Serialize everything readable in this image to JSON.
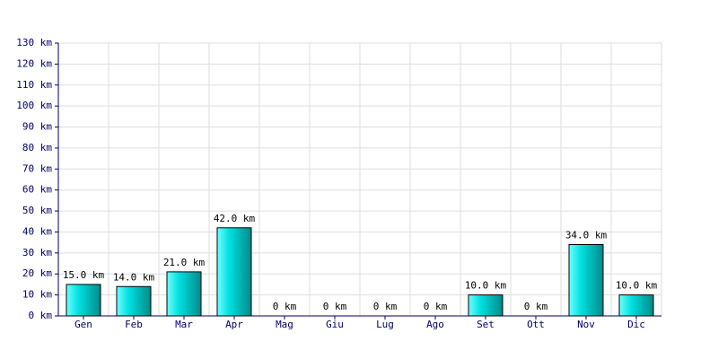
{
  "chart_data": {
    "type": "bar",
    "categories": [
      "Gen",
      "Feb",
      "Mar",
      "Apr",
      "Mag",
      "Giu",
      "Lug",
      "Ago",
      "Set",
      "Ott",
      "Nov",
      "Dic"
    ],
    "values": [
      15,
      14,
      21,
      42,
      0,
      0,
      0,
      0,
      10,
      0,
      34,
      10
    ],
    "value_labels": [
      "15.0 km",
      "14.0 km",
      "21.0 km",
      "42.0 km",
      "0 km",
      "0 km",
      "0 km",
      "0 km",
      "10.0 km",
      "0 km",
      "34.0 km",
      "10.0 km"
    ],
    "color": "#00c8c8",
    "ylim": [
      0,
      130
    ],
    "yticks": [
      {
        "value": 0,
        "label": "0 km"
      },
      {
        "value": 10,
        "label": "10 km"
      },
      {
        "value": 20,
        "label": "20 km"
      },
      {
        "value": 30,
        "label": "30 km"
      },
      {
        "value": 40,
        "label": "40 km"
      },
      {
        "value": 50,
        "label": "50 km"
      },
      {
        "value": 60,
        "label": "60 km"
      },
      {
        "value": 70,
        "label": "70 km"
      },
      {
        "value": 80,
        "label": "80 km"
      },
      {
        "value": 90,
        "label": "90 km"
      },
      {
        "value": 100,
        "label": "100 km"
      },
      {
        "value": 110,
        "label": "110 km"
      },
      {
        "value": 120,
        "label": "120 km"
      },
      {
        "value": 130,
        "label": "130 km"
      }
    ],
    "grid": true
  }
}
